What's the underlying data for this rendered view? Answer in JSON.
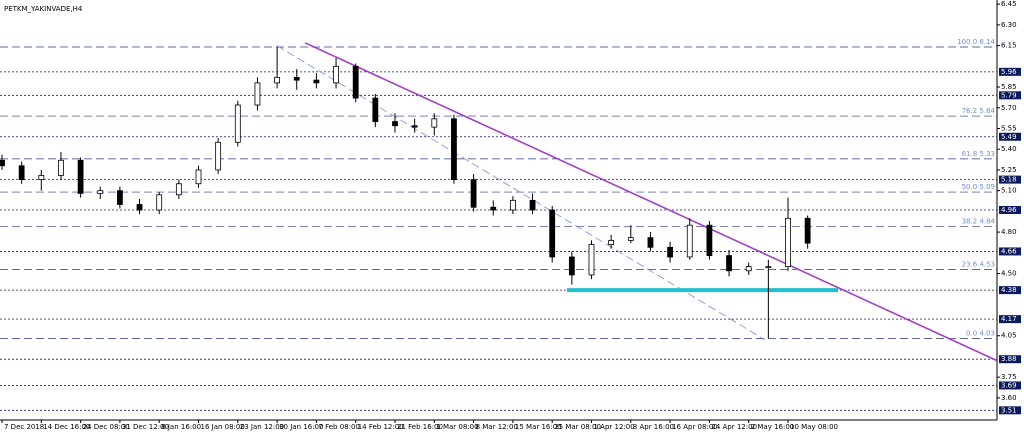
{
  "chart_data": {
    "type": "candlestick",
    "title": "PETKM_YAKINVADE,H4",
    "categories": [
      "7 Dec 2018",
      null,
      "14 Dec 16:00",
      null,
      "24 Dec 08:00",
      null,
      "31 Dec 12:00",
      null,
      "8 Jan 16:00",
      null,
      "16 Jan 08:00",
      null,
      "23 Jan 12:00",
      null,
      "30 Jan 16:00",
      null,
      "7 Feb 08:00",
      null,
      "14 Feb 12:00",
      null,
      "21 Feb 16:00",
      null,
      "1 Mar 08:00",
      null,
      "8 Mar 12:00",
      null,
      "15 Mar 16:00",
      null,
      "25 Mar 08:00",
      null,
      "1 Apr 12:00",
      null,
      "8 Apr 16:00",
      null,
      "16 Apr 08:00",
      null,
      "24 Apr 12:00",
      null,
      "2 May 16:00",
      null,
      "10 May 08:00",
      null
    ],
    "open": [
      5.32,
      5.28,
      5.18,
      5.21,
      5.32,
      5.08,
      5.1,
      5.0,
      4.96,
      5.07,
      5.15,
      5.25,
      5.45,
      5.72,
      5.88,
      5.92,
      5.9,
      5.88,
      6.0,
      5.77,
      5.6,
      5.57,
      5.56,
      5.62,
      5.18,
      4.98,
      4.96,
      5.03,
      4.96,
      4.62,
      4.49,
      4.71,
      4.74,
      4.76,
      4.69,
      4.62,
      4.85,
      4.63,
      4.52,
      4.55,
      4.55,
      4.9
    ],
    "high": [
      5.36,
      5.31,
      5.25,
      5.38,
      5.34,
      5.13,
      5.13,
      5.04,
      5.09,
      5.18,
      5.28,
      5.48,
      5.75,
      5.92,
      6.14,
      5.98,
      5.95,
      6.06,
      6.02,
      5.8,
      5.66,
      5.62,
      5.66,
      5.65,
      5.22,
      5.03,
      5.06,
      5.08,
      4.99,
      4.66,
      4.74,
      4.78,
      4.85,
      4.8,
      4.73,
      4.9,
      4.88,
      4.67,
      4.58,
      4.6,
      5.05,
      4.92
    ],
    "low": [
      5.25,
      5.15,
      5.1,
      5.18,
      5.05,
      5.04,
      4.97,
      4.93,
      4.93,
      5.04,
      5.12,
      5.22,
      5.42,
      5.68,
      5.84,
      5.83,
      5.84,
      5.84,
      5.74,
      5.56,
      5.52,
      5.52,
      5.5,
      5.15,
      4.95,
      4.92,
      4.93,
      4.93,
      4.58,
      4.42,
      4.46,
      4.68,
      4.72,
      4.66,
      4.58,
      4.6,
      4.6,
      4.48,
      4.49,
      4.03,
      4.52,
      4.68
    ],
    "close": [
      5.28,
      5.18,
      5.21,
      5.32,
      5.08,
      5.1,
      5.0,
      4.96,
      5.07,
      5.15,
      5.25,
      5.45,
      5.72,
      5.88,
      5.92,
      5.9,
      5.88,
      6.0,
      5.77,
      5.6,
      5.57,
      5.56,
      5.62,
      5.18,
      4.98,
      4.96,
      5.03,
      4.96,
      4.62,
      4.49,
      4.71,
      4.74,
      4.76,
      4.69,
      4.62,
      4.85,
      4.63,
      4.52,
      4.55,
      4.55,
      4.9,
      4.72
    ],
    "ylim": [
      3.44,
      6.48
    ],
    "yticks": [
      6.45,
      {
        "value": 6.3,
        "label": "6.30"
      },
      6.15,
      5.85,
      {
        "value": 5.7,
        "label": "5.70"
      },
      5.55,
      {
        "value": 5.4,
        "label": "5.40"
      },
      5.25,
      {
        "value": 5.1,
        "label": "5.10"
      },
      {
        "value": 4.8,
        "label": "4.80"
      },
      {
        "value": 4.5,
        "label": "4.50"
      },
      4.05,
      3.75,
      {
        "value": 3.6,
        "label": "3.60"
      }
    ],
    "price_levels": [
      5.96,
      5.79,
      5.49,
      5.18,
      4.96,
      4.66,
      4.38,
      4.17,
      3.88,
      3.69,
      3.51
    ],
    "fib_levels": [
      {
        "value": 6.14,
        "label": "100.0  6.14"
      },
      {
        "value": 5.64,
        "label": "76.2  5.64"
      },
      {
        "value": 5.33,
        "label": "61.8  5.33"
      },
      {
        "value": 5.09,
        "label": "50.0  5.09"
      },
      {
        "value": 4.84,
        "label": "38.2  4.84"
      },
      {
        "value": 4.53,
        "label": "23.6  4.53"
      },
      {
        "value": 4.03,
        "label": "0.0  4.03"
      }
    ],
    "trendline": {
      "color": "#a040c8",
      "values": [
        6.17,
        3.87
      ]
    },
    "fib_line": {
      "color": "#6e8fd6",
      "values": [
        6.15,
        4.02
      ]
    },
    "support_line": {
      "color": "#22c0d0",
      "value": 4.38
    }
  }
}
